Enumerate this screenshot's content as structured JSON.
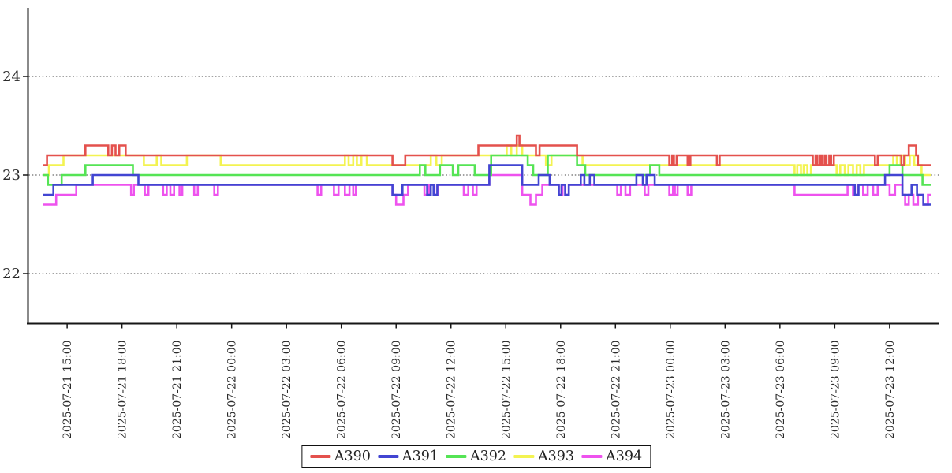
{
  "chart_data": {
    "type": "line",
    "line_style": "step-after",
    "title": "",
    "x_axis": {
      "label": "",
      "tick_labels": [
        "2025-07-21 15:00",
        "2025-07-21 18:00",
        "2025-07-21 21:00",
        "2025-07-22 00:00",
        "2025-07-22 03:00",
        "2025-07-22 06:00",
        "2025-07-22 09:00",
        "2025-07-22 12:00",
        "2025-07-22 15:00",
        "2025-07-22 18:00",
        "2025-07-22 21:00",
        "2025-07-23 00:00",
        "2025-07-23 03:00",
        "2025-07-23 06:00",
        "2025-07-23 09:00",
        "2025-07-23 12:00"
      ],
      "tick_interval_hours": 3,
      "first_tick_offset_hours": 1.3,
      "range_hours": [
        0,
        48.55
      ]
    },
    "y_axis": {
      "label": "",
      "tick_labels": [
        "22",
        "23",
        "24"
      ],
      "tick_values": [
        22,
        23,
        24
      ],
      "range": [
        21.5,
        24.72
      ],
      "gridlines": "dotted"
    },
    "legend": {
      "position": "bottom-center",
      "entries": [
        "A390",
        "A391",
        "A392",
        "A393",
        "A394"
      ]
    },
    "series": [
      {
        "name": "A390",
        "color": "#e4514d",
        "points": [
          [
            0,
            23.1
          ],
          [
            0.2,
            23.2
          ],
          [
            2.3,
            23.3
          ],
          [
            3.55,
            23.2
          ],
          [
            3.75,
            23.3
          ],
          [
            3.95,
            23.2
          ],
          [
            4.15,
            23.3
          ],
          [
            4.5,
            23.2
          ],
          [
            19.1,
            23.1
          ],
          [
            19.8,
            23.2
          ],
          [
            23.8,
            23.3
          ],
          [
            25.9,
            23.4
          ],
          [
            26.05,
            23.3
          ],
          [
            26.95,
            23.2
          ],
          [
            27.15,
            23.3
          ],
          [
            29.2,
            23.2
          ],
          [
            34.25,
            23.1
          ],
          [
            34.4,
            23.2
          ],
          [
            34.5,
            23.1
          ],
          [
            34.65,
            23.2
          ],
          [
            35.25,
            23.1
          ],
          [
            35.4,
            23.2
          ],
          [
            36.85,
            23.1
          ],
          [
            37.0,
            23.2
          ],
          [
            42.1,
            23.1
          ],
          [
            42.25,
            23.2
          ],
          [
            42.35,
            23.1
          ],
          [
            42.5,
            23.2
          ],
          [
            42.6,
            23.1
          ],
          [
            42.75,
            23.2
          ],
          [
            42.85,
            23.1
          ],
          [
            43.0,
            23.2
          ],
          [
            43.1,
            23.1
          ],
          [
            43.25,
            23.2
          ],
          [
            45.5,
            23.1
          ],
          [
            45.65,
            23.2
          ],
          [
            46.95,
            23.1
          ],
          [
            47.1,
            23.2
          ],
          [
            47.35,
            23.3
          ],
          [
            47.75,
            23.2
          ],
          [
            47.85,
            23.1
          ]
        ]
      },
      {
        "name": "A391",
        "color": "#4245d2",
        "points": [
          [
            0,
            22.8
          ],
          [
            0.55,
            22.9
          ],
          [
            2.7,
            23.0
          ],
          [
            5.2,
            22.9
          ],
          [
            19.1,
            22.8
          ],
          [
            19.65,
            22.9
          ],
          [
            21.0,
            22.8
          ],
          [
            21.2,
            22.9
          ],
          [
            21.35,
            22.8
          ],
          [
            21.55,
            22.9
          ],
          [
            24.4,
            23.1
          ],
          [
            26.2,
            22.9
          ],
          [
            27.1,
            23.0
          ],
          [
            27.7,
            22.9
          ],
          [
            28.2,
            22.8
          ],
          [
            28.35,
            22.9
          ],
          [
            28.55,
            22.8
          ],
          [
            28.75,
            22.9
          ],
          [
            29.4,
            23.0
          ],
          [
            29.6,
            22.9
          ],
          [
            29.9,
            23.0
          ],
          [
            30.15,
            22.9
          ],
          [
            32.45,
            23.0
          ],
          [
            32.8,
            22.9
          ],
          [
            33.0,
            23.0
          ],
          [
            33.45,
            22.9
          ],
          [
            44.4,
            22.8
          ],
          [
            44.6,
            22.9
          ],
          [
            46.05,
            23.0
          ],
          [
            47.0,
            22.8
          ],
          [
            47.5,
            22.9
          ],
          [
            47.8,
            22.8
          ],
          [
            48.15,
            22.7
          ]
        ]
      },
      {
        "name": "A392",
        "color": "#55e455",
        "points": [
          [
            0,
            23.0
          ],
          [
            0.25,
            22.9
          ],
          [
            1.0,
            23.0
          ],
          [
            2.3,
            23.1
          ],
          [
            4.9,
            23.0
          ],
          [
            20.6,
            23.1
          ],
          [
            20.9,
            23.0
          ],
          [
            21.7,
            23.1
          ],
          [
            22.4,
            23.0
          ],
          [
            22.7,
            23.1
          ],
          [
            23.6,
            23.0
          ],
          [
            24.5,
            23.2
          ],
          [
            26.5,
            23.1
          ],
          [
            26.8,
            23.0
          ],
          [
            27.6,
            23.2
          ],
          [
            29.2,
            23.1
          ],
          [
            29.65,
            23.0
          ],
          [
            33.2,
            23.1
          ],
          [
            33.7,
            23.0
          ],
          [
            46.3,
            23.1
          ],
          [
            47.0,
            23.0
          ],
          [
            48.1,
            22.9
          ]
        ]
      },
      {
        "name": "A393",
        "color": "#f3f351",
        "points": [
          [
            0,
            23.0
          ],
          [
            0.3,
            23.1
          ],
          [
            1.1,
            23.2
          ],
          [
            5.5,
            23.1
          ],
          [
            6.2,
            23.2
          ],
          [
            6.45,
            23.1
          ],
          [
            7.85,
            23.2
          ],
          [
            9.7,
            23.1
          ],
          [
            16.5,
            23.2
          ],
          [
            16.7,
            23.1
          ],
          [
            16.95,
            23.2
          ],
          [
            17.15,
            23.1
          ],
          [
            17.4,
            23.2
          ],
          [
            17.7,
            23.1
          ],
          [
            21.2,
            23.2
          ],
          [
            21.5,
            23.1
          ],
          [
            21.8,
            23.2
          ],
          [
            25.35,
            23.3
          ],
          [
            25.6,
            23.2
          ],
          [
            25.9,
            23.3
          ],
          [
            26.2,
            23.2
          ],
          [
            27.5,
            23.1
          ],
          [
            27.8,
            23.2
          ],
          [
            29.5,
            23.1
          ],
          [
            41.1,
            23.0
          ],
          [
            41.25,
            23.1
          ],
          [
            41.45,
            23.0
          ],
          [
            41.6,
            23.1
          ],
          [
            41.8,
            23.0
          ],
          [
            42.0,
            23.1
          ],
          [
            43.4,
            23.0
          ],
          [
            43.6,
            23.1
          ],
          [
            43.85,
            23.0
          ],
          [
            44.05,
            23.1
          ],
          [
            44.3,
            23.0
          ],
          [
            44.5,
            23.1
          ],
          [
            44.7,
            23.0
          ],
          [
            44.9,
            23.1
          ],
          [
            46.5,
            23.2
          ],
          [
            46.7,
            23.1
          ],
          [
            46.9,
            23.2
          ],
          [
            47.15,
            23.1
          ],
          [
            47.4,
            23.2
          ],
          [
            47.65,
            23.1
          ],
          [
            48.05,
            23.0
          ]
        ]
      },
      {
        "name": "A394",
        "color": "#ee52ee",
        "points": [
          [
            0,
            22.7
          ],
          [
            0.7,
            22.8
          ],
          [
            1.8,
            22.9
          ],
          [
            4.8,
            22.8
          ],
          [
            4.95,
            22.9
          ],
          [
            5.55,
            22.8
          ],
          [
            5.75,
            22.9
          ],
          [
            6.55,
            22.8
          ],
          [
            6.75,
            22.9
          ],
          [
            6.95,
            22.8
          ],
          [
            7.15,
            22.9
          ],
          [
            7.45,
            22.8
          ],
          [
            7.6,
            22.9
          ],
          [
            8.25,
            22.8
          ],
          [
            8.45,
            22.9
          ],
          [
            9.35,
            22.8
          ],
          [
            9.55,
            22.9
          ],
          [
            15.0,
            22.8
          ],
          [
            15.2,
            22.9
          ],
          [
            15.9,
            22.8
          ],
          [
            16.15,
            22.9
          ],
          [
            16.5,
            22.8
          ],
          [
            16.75,
            22.9
          ],
          [
            16.95,
            22.8
          ],
          [
            17.1,
            22.9
          ],
          [
            19.1,
            22.8
          ],
          [
            19.3,
            22.7
          ],
          [
            19.7,
            22.8
          ],
          [
            19.95,
            22.9
          ],
          [
            20.85,
            22.8
          ],
          [
            21.1,
            22.9
          ],
          [
            21.4,
            22.8
          ],
          [
            21.6,
            22.9
          ],
          [
            23.0,
            22.8
          ],
          [
            23.25,
            22.9
          ],
          [
            23.5,
            22.8
          ],
          [
            23.7,
            22.9
          ],
          [
            24.4,
            23.0
          ],
          [
            26.2,
            22.8
          ],
          [
            26.65,
            22.7
          ],
          [
            26.95,
            22.8
          ],
          [
            27.3,
            22.9
          ],
          [
            28.2,
            22.8
          ],
          [
            28.4,
            22.9
          ],
          [
            28.55,
            22.8
          ],
          [
            28.75,
            22.9
          ],
          [
            31.4,
            22.8
          ],
          [
            31.6,
            22.9
          ],
          [
            31.85,
            22.8
          ],
          [
            32.1,
            22.9
          ],
          [
            32.9,
            22.8
          ],
          [
            33.1,
            22.9
          ],
          [
            34.25,
            22.8
          ],
          [
            34.45,
            22.9
          ],
          [
            34.55,
            22.8
          ],
          [
            34.7,
            22.9
          ],
          [
            35.25,
            22.8
          ],
          [
            35.45,
            22.9
          ],
          [
            41.1,
            22.8
          ],
          [
            44.0,
            22.9
          ],
          [
            44.3,
            22.8
          ],
          [
            44.55,
            22.9
          ],
          [
            44.85,
            22.8
          ],
          [
            45.1,
            22.9
          ],
          [
            45.4,
            22.8
          ],
          [
            45.65,
            22.9
          ],
          [
            46.3,
            22.8
          ],
          [
            46.6,
            22.9
          ],
          [
            47.0,
            22.8
          ],
          [
            47.15,
            22.7
          ],
          [
            47.35,
            22.8
          ],
          [
            47.6,
            22.7
          ],
          [
            47.85,
            22.8
          ],
          [
            48.15,
            22.7
          ],
          [
            48.4,
            22.8
          ]
        ]
      }
    ]
  }
}
